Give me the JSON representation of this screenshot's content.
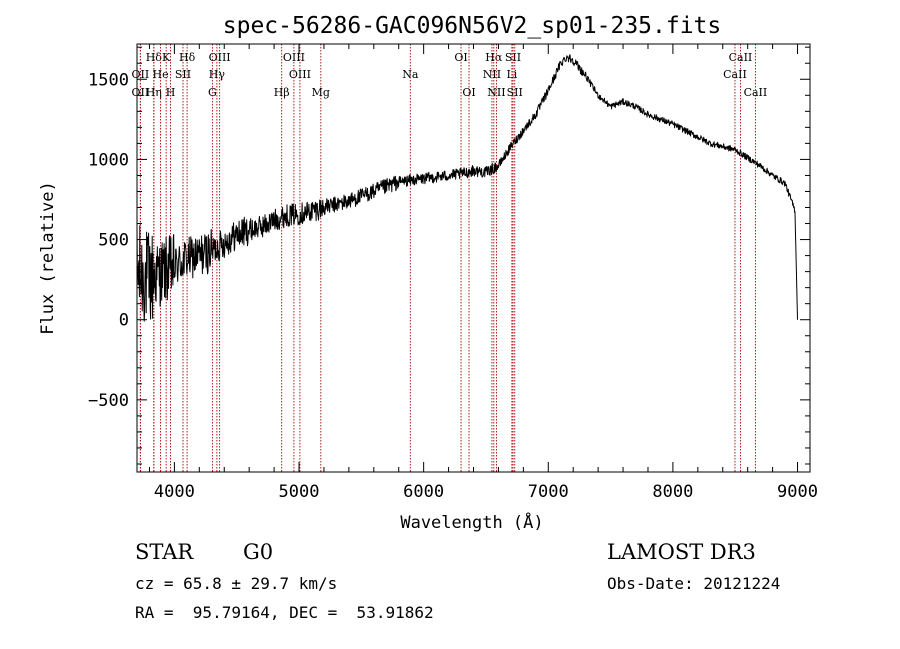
{
  "chart_data": {
    "type": "line",
    "title": "spec-56286-GAC096N56V2_sp01-235.fits",
    "xlabel": "Wavelength (Å)",
    "ylabel": "Flux (relative)",
    "xlim": [
      3700,
      9100
    ],
    "ylim": [
      -950,
      1720
    ],
    "x_ticks": [
      4000,
      5000,
      6000,
      7000,
      8000,
      9000
    ],
    "y_ticks": [
      -500,
      0,
      500,
      1000,
      1500
    ],
    "x_tick_labels": [
      "4000",
      "5000",
      "6000",
      "7000",
      "8000",
      "9000"
    ],
    "y_tick_labels": [
      "−500",
      "0",
      "500",
      "1000",
      "1500"
    ],
    "grid": false,
    "line_color": "#000000",
    "marker_color": "#aa0000",
    "spectrum": {
      "name": "flux",
      "x_start": 3700,
      "x_end": 9000,
      "anchors": [
        [
          3700,
          300
        ],
        [
          3800,
          250
        ],
        [
          3900,
          300
        ],
        [
          4000,
          330
        ],
        [
          4100,
          380
        ],
        [
          4200,
          400
        ],
        [
          4300,
          430
        ],
        [
          4400,
          480
        ],
        [
          4500,
          530
        ],
        [
          4600,
          560
        ],
        [
          4700,
          580
        ],
        [
          4800,
          620
        ],
        [
          4900,
          650
        ],
        [
          5000,
          660
        ],
        [
          5100,
          680
        ],
        [
          5200,
          700
        ],
        [
          5300,
          720
        ],
        [
          5400,
          740
        ],
        [
          5500,
          770
        ],
        [
          5600,
          800
        ],
        [
          5700,
          830
        ],
        [
          5800,
          860
        ],
        [
          5900,
          870
        ],
        [
          6000,
          880
        ],
        [
          6100,
          890
        ],
        [
          6200,
          900
        ],
        [
          6300,
          910
        ],
        [
          6400,
          930
        ],
        [
          6500,
          920
        ],
        [
          6600,
          960
        ],
        [
          6700,
          1080
        ],
        [
          6800,
          1180
        ],
        [
          6900,
          1280
        ],
        [
          7000,
          1430
        ],
        [
          7100,
          1600
        ],
        [
          7150,
          1640
        ],
        [
          7200,
          1620
        ],
        [
          7300,
          1520
        ],
        [
          7400,
          1400
        ],
        [
          7500,
          1330
        ],
        [
          7600,
          1360
        ],
        [
          7700,
          1330
        ],
        [
          7800,
          1280
        ],
        [
          7900,
          1250
        ],
        [
          8000,
          1220
        ],
        [
          8100,
          1180
        ],
        [
          8200,
          1140
        ],
        [
          8300,
          1100
        ],
        [
          8400,
          1080
        ],
        [
          8500,
          1060
        ],
        [
          8600,
          1010
        ],
        [
          8700,
          960
        ],
        [
          8800,
          900
        ],
        [
          8900,
          850
        ],
        [
          8980,
          680
        ],
        [
          9000,
          0
        ]
      ]
    },
    "line_markers": [
      {
        "label": "Hδ",
        "x": 3835,
        "row": 0
      },
      {
        "label": "K",
        "x": 3934,
        "row": 0
      },
      {
        "label": "Hδ",
        "x": 4102,
        "row": 0
      },
      {
        "label": "OIII",
        "x": 4363,
        "row": 0
      },
      {
        "label": "OIII",
        "x": 4959,
        "row": 0
      },
      {
        "label": "OI",
        "x": 6300,
        "row": 0
      },
      {
        "label": "Hα",
        "x": 6563,
        "row": 0
      },
      {
        "label": "SII",
        "x": 6717,
        "row": 0
      },
      {
        "label": "CaII",
        "x": 8542,
        "row": 0
      },
      {
        "label": "OII",
        "x": 3727,
        "row": 1
      },
      {
        "label": "He",
        "x": 3889,
        "row": 1
      },
      {
        "label": "SII",
        "x": 4069,
        "row": 1
      },
      {
        "label": "Hγ",
        "x": 4341,
        "row": 1
      },
      {
        "label": "OIII",
        "x": 5007,
        "row": 1
      },
      {
        "label": "Na",
        "x": 5893,
        "row": 1
      },
      {
        "label": "NII",
        "x": 6548,
        "row": 1
      },
      {
        "label": "Li",
        "x": 6708,
        "row": 1
      },
      {
        "label": "CaII",
        "x": 8498,
        "row": 1
      },
      {
        "label": "OII",
        "x": 3727,
        "row": 2
      },
      {
        "label": "Hη",
        "x": 3835,
        "row": 2
      },
      {
        "label": "H",
        "x": 3969,
        "row": 2
      },
      {
        "label": "G",
        "x": 4305,
        "row": 2
      },
      {
        "label": "Hβ",
        "x": 4861,
        "row": 2
      },
      {
        "label": "Mg",
        "x": 5175,
        "row": 2
      },
      {
        "label": "OI",
        "x": 6364,
        "row": 2
      },
      {
        "label": "NII",
        "x": 6584,
        "row": 2
      },
      {
        "label": "SII",
        "x": 6731,
        "row": 2
      },
      {
        "label": "CaII",
        "x": 8662,
        "row": 2
      }
    ]
  },
  "info": {
    "class": "STAR",
    "subclass": "G0",
    "survey": "LAMOST DR3",
    "cz": "cz = 65.8 ± 29.7 km/s",
    "obs_date": "Obs-Date: 20121224",
    "coords": "RA =  95.79164, DEC =  53.91862"
  }
}
